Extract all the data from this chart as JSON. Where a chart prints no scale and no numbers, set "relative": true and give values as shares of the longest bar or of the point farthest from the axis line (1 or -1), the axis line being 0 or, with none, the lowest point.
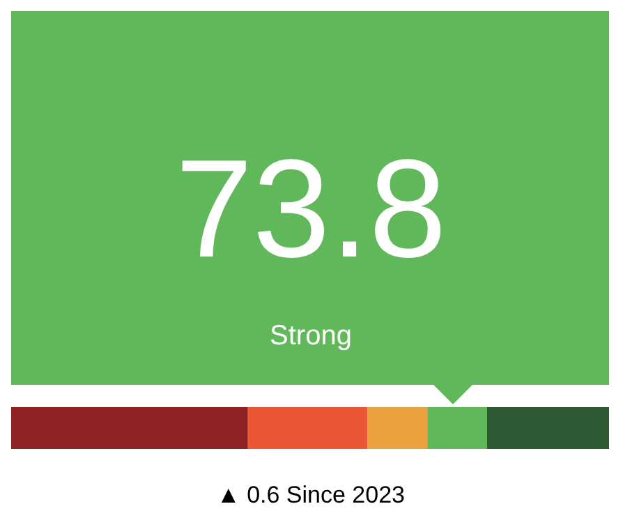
{
  "chart_data": {
    "type": "bar",
    "orientation": "horizontal",
    "stacked": true,
    "relative": true,
    "title": "73.8",
    "subtitle": "Strong",
    "annotations": [
      "▲ 0.6 Since 2023"
    ],
    "categories": [
      null
    ],
    "series": [
      {
        "color": "#8f2024",
        "values": [
          0.396
        ]
      },
      {
        "color": "#eb5735",
        "values": [
          0.2
        ]
      },
      {
        "color": "#eba13f",
        "values": [
          0.1
        ]
      },
      {
        "color": "#61b85b",
        "values": [
          0.1
        ]
      },
      {
        "color": "#2e5a33",
        "values": [
          0.204
        ]
      }
    ]
  }
}
